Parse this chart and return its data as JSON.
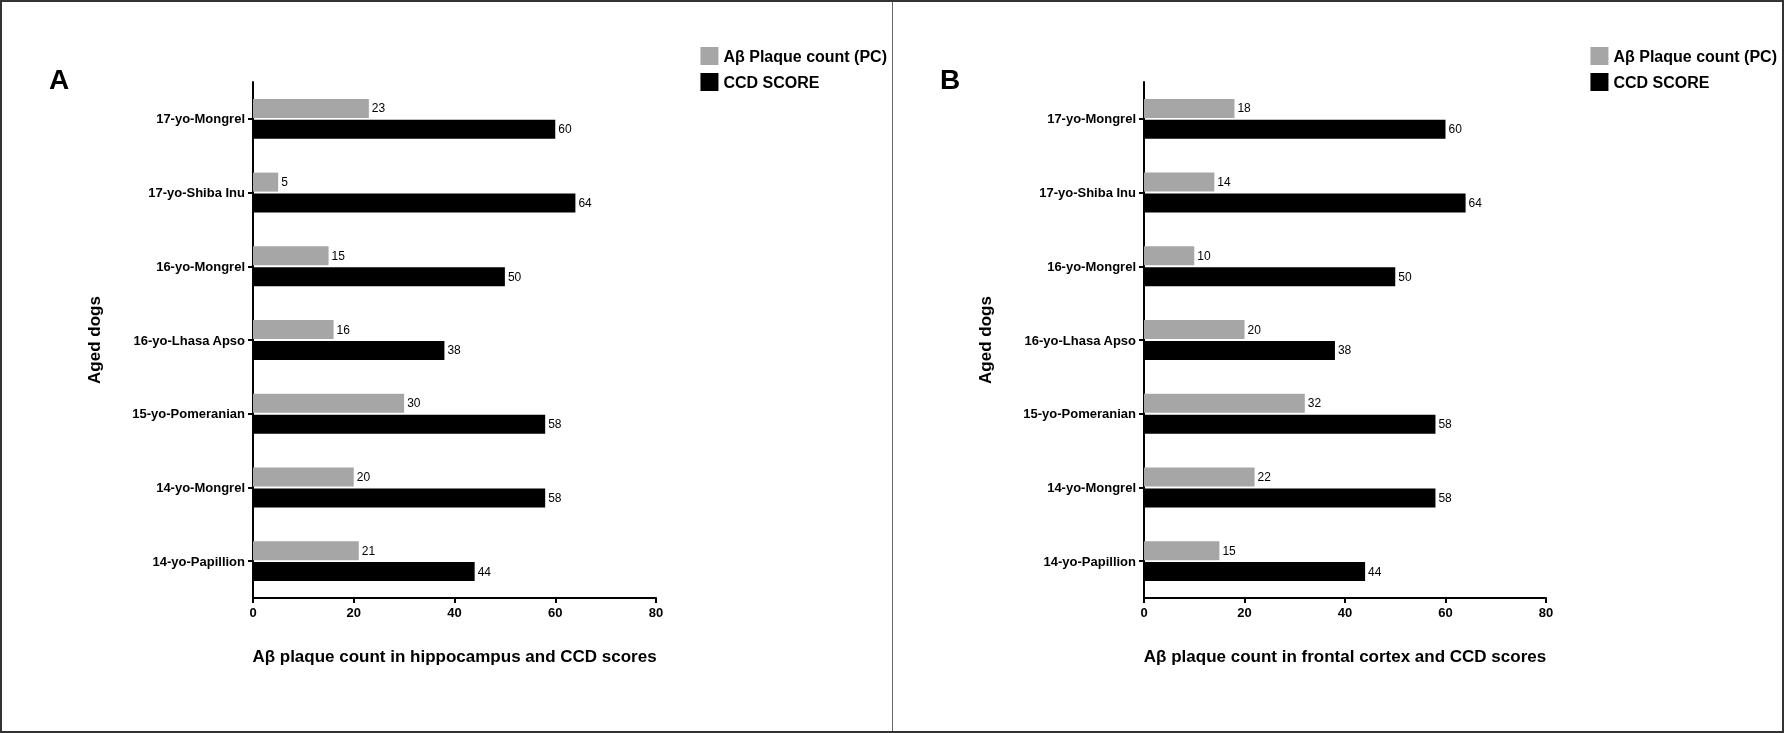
{
  "chart_data": [
    {
      "type": "bar",
      "orientation": "horizontal",
      "title": "A",
      "xlabel": "Aβ plaque count in hippocampus and CCD scores",
      "ylabel": "Aged dogs",
      "categories": [
        "17-yo-Mongrel",
        "17-yo-Shiba Inu",
        "16-yo-Mongrel",
        "16-yo-Lhasa Apso",
        "15-yo-Pomeranian",
        "14-yo-Mongrel",
        "14-yo-Papillion"
      ],
      "series": [
        {
          "name": "Aβ Plaque count (PC)",
          "color": "#a6a6a6",
          "values": [
            23,
            5,
            15,
            16,
            30,
            20,
            21
          ]
        },
        {
          "name": "CCD SCORE",
          "color": "#000000",
          "values": [
            60,
            64,
            50,
            38,
            58,
            58,
            44
          ]
        }
      ],
      "xlim": [
        0,
        80
      ],
      "xticks": [
        0,
        20,
        40,
        60,
        80
      ],
      "data_labels": true,
      "legend": "top right",
      "grid": false
    },
    {
      "type": "bar",
      "orientation": "horizontal",
      "title": "B",
      "xlabel": "Aβ plaque count in frontal cortex and CCD scores",
      "ylabel": "Aged dogs",
      "categories": [
        "17-yo-Mongrel",
        "17-yo-Shiba Inu",
        "16-yo-Mongrel",
        "16-yo-Lhasa Apso",
        "15-yo-Pomeranian",
        "14-yo-Mongrel",
        "14-yo-Papillion"
      ],
      "series": [
        {
          "name": "Aβ Plaque count (PC)",
          "color": "#a6a6a6",
          "values": [
            18,
            14,
            10,
            20,
            32,
            22,
            15
          ]
        },
        {
          "name": "CCD SCORE",
          "color": "#000000",
          "values": [
            60,
            64,
            50,
            38,
            58,
            58,
            44
          ]
        }
      ],
      "xlim": [
        0,
        80
      ],
      "xticks": [
        0,
        20,
        40,
        60,
        80
      ],
      "data_labels": true,
      "legend": "top right",
      "grid": false
    }
  ]
}
